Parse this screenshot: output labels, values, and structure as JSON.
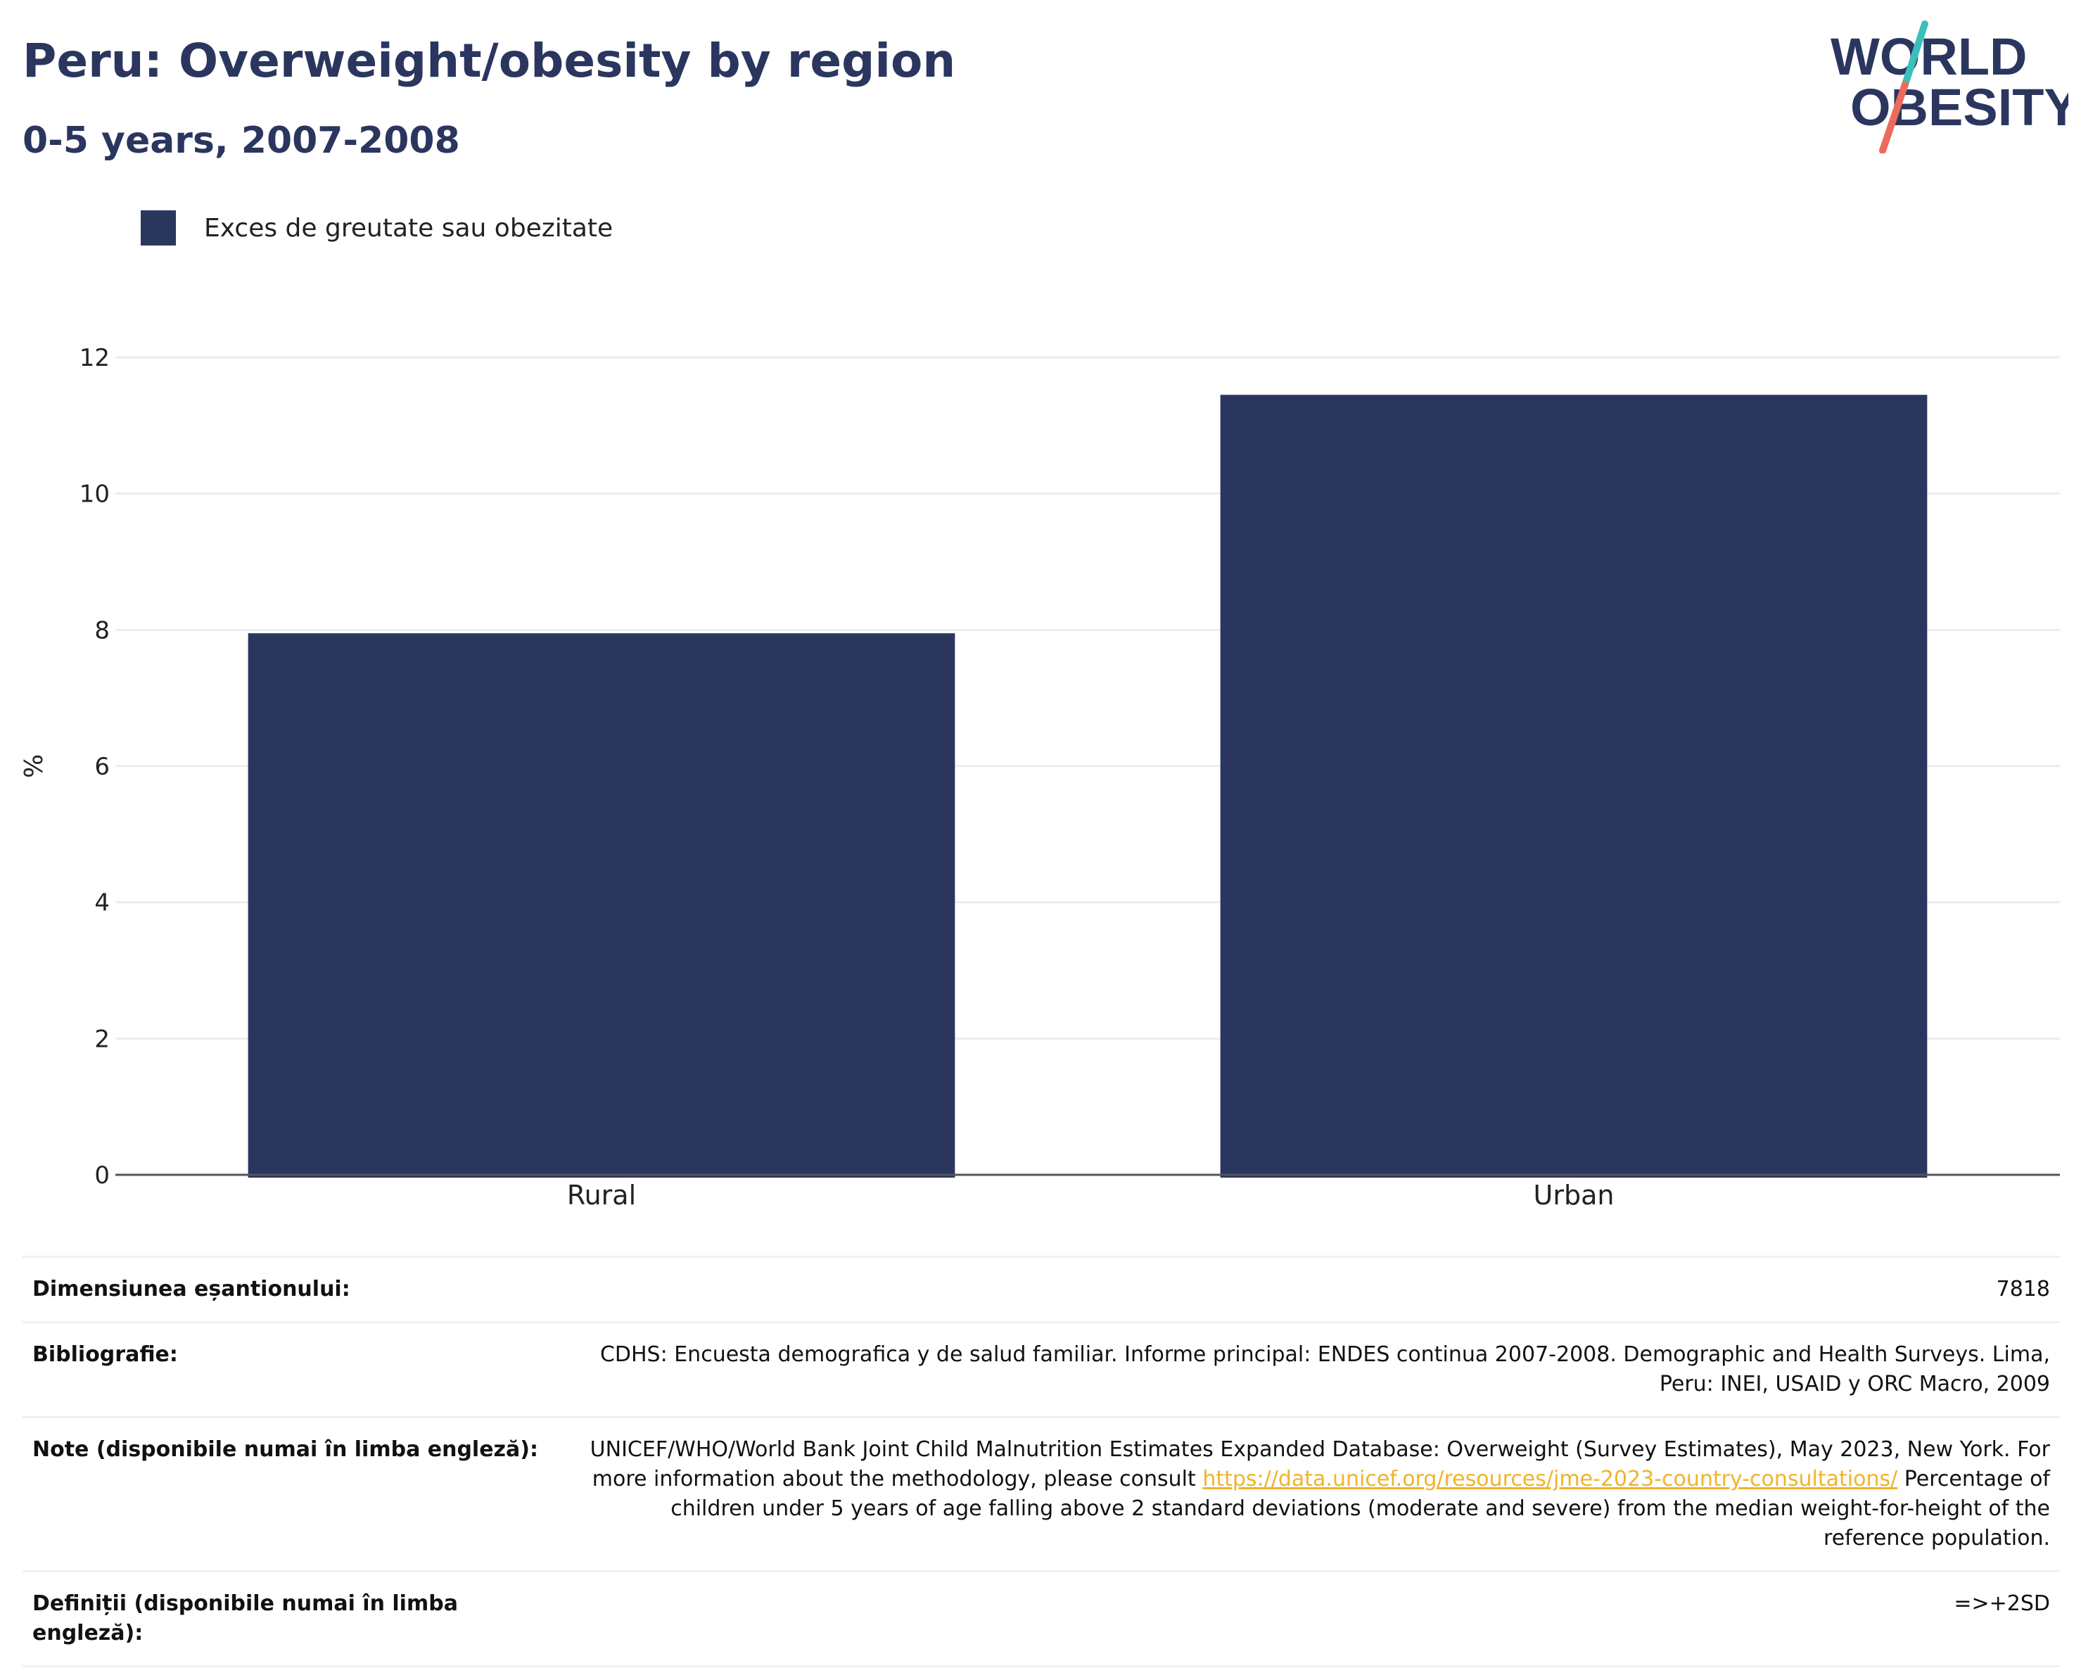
{
  "header": {
    "title": "Peru: Overweight/obesity by region",
    "subtitle": "0-5 years, 2007-2008"
  },
  "logo": {
    "line1": "WORLD",
    "line2": "OBESITY",
    "text_color": "#2b365f",
    "slash_top_color": "#3bbfba",
    "slash_bottom_color": "#ec6b5c"
  },
  "chart_data": {
    "type": "bar",
    "categories": [
      "Rural",
      "Urban"
    ],
    "series": [
      {
        "name": "Exces de greutate sau obezitate",
        "values": [
          7.95,
          11.45
        ],
        "color": "#2b365f"
      }
    ],
    "title": "Peru: Overweight/obesity by region",
    "subtitle": "0-5 years, 2007-2008",
    "xlabel": "",
    "ylabel": "%",
    "ylim": [
      0,
      12
    ],
    "yticks": [
      0,
      2,
      4,
      6,
      8,
      10,
      12
    ],
    "grid": true,
    "legend_position": "top-left"
  },
  "info": {
    "rows": [
      {
        "key": "Dimensiunea eșantionului:",
        "value": "7818"
      },
      {
        "key": "Bibliografie:",
        "value": "CDHS: Encuesta demografica y de salud familiar. Informe principal: ENDES continua 2007-2008. Demographic and Health Surveys. Lima, Peru: INEI, USAID y ORC Macro, 2009"
      },
      {
        "key": "Note (disponibile numai în limba engleză):",
        "value_before": "UNICEF/WHO/World Bank Joint Child Malnutrition Estimates Expanded Database: Overweight (Survey Estimates), May 2023, New York. For more information about the methodology, please consult ",
        "link": "https://data.unicef.org/resources/jme-2023-country-consultations/",
        "value_after": " Percentage of children under 5 years of age falling above 2 standard deviations (moderate and severe) from the median weight-for-height of the reference population."
      },
      {
        "key": "Definiții (disponibile numai în limba engleză):",
        "value": "=>+2SD"
      }
    ]
  }
}
